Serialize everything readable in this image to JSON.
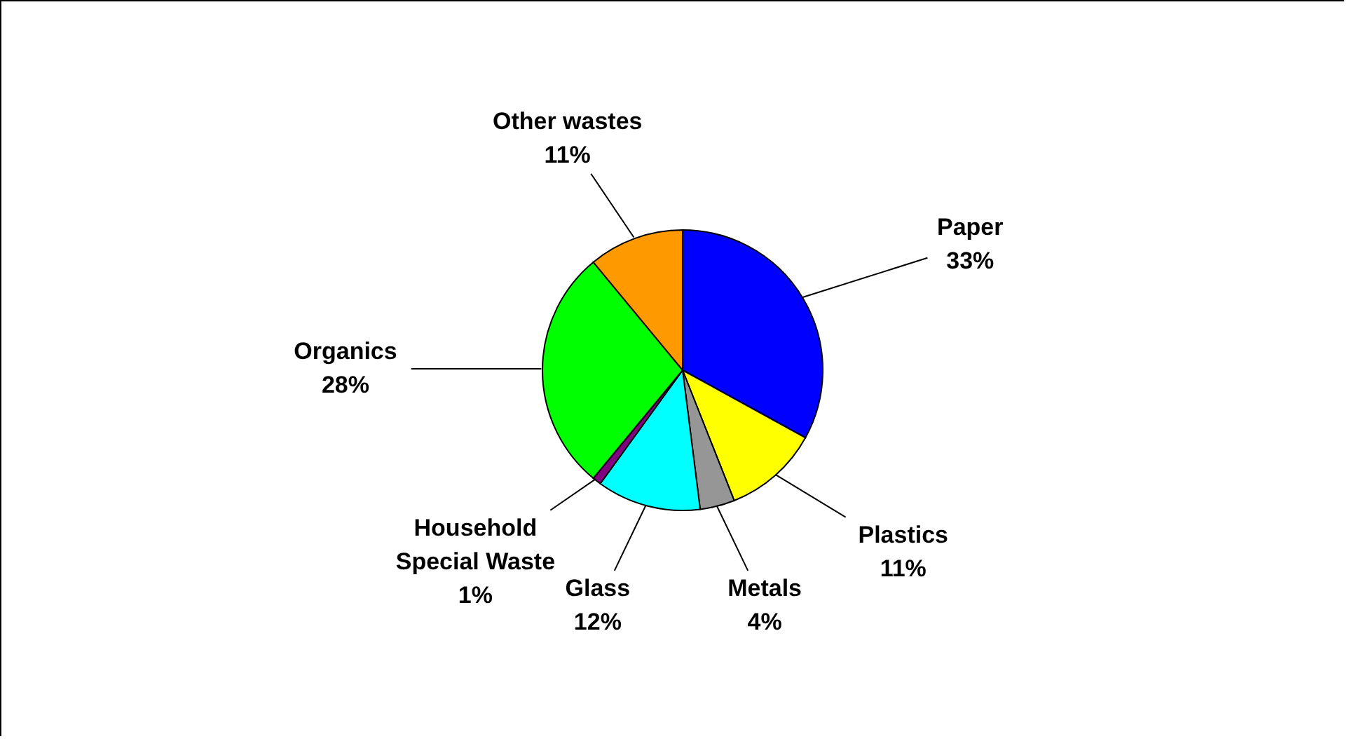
{
  "chart_data": {
    "type": "pie",
    "categories": [
      "Paper",
      "Plastics",
      "Metals",
      "Glass",
      "Household Special Waste",
      "Organics",
      "Other wastes"
    ],
    "values": [
      33,
      11,
      4,
      12,
      1,
      28,
      11
    ],
    "value_labels": [
      "33%",
      "11%",
      "4%",
      "12%",
      "1%",
      "28%",
      "11%"
    ],
    "colors": [
      "#0000ff",
      "#ffff00",
      "#969696",
      "#00ffff",
      "#800080",
      "#00ff00",
      "#ff9900"
    ]
  }
}
